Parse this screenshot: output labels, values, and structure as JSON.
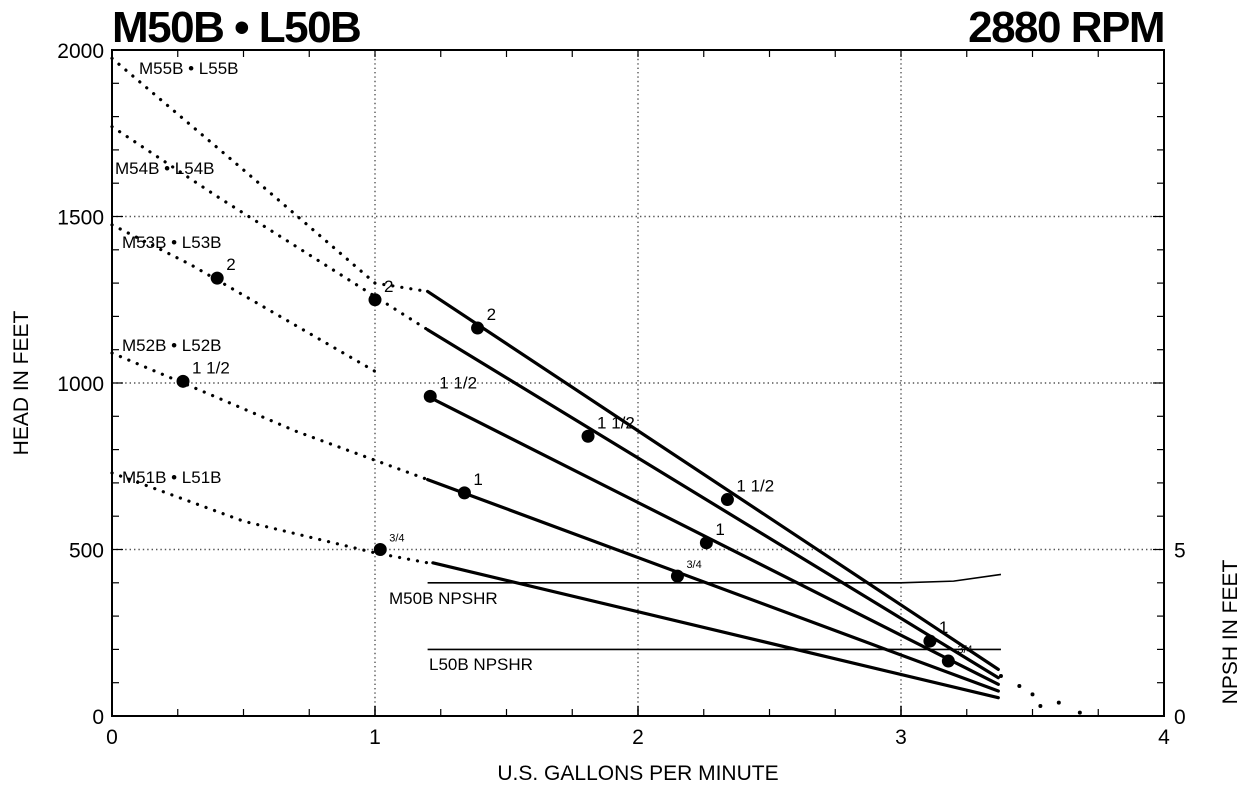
{
  "chart_data": {
    "type": "line",
    "title": "M50B • L50B",
    "title_right": "2880 RPM",
    "xlabel": "U.S. GALLONS PER MINUTE",
    "ylabel": "HEAD IN FEET",
    "y2label": "NPSH IN FEET",
    "xlim": [
      0,
      4
    ],
    "ylim": [
      0,
      2000
    ],
    "y2lim": [
      0,
      20
    ],
    "x_ticks": [
      "0",
      "1",
      "2",
      "3",
      "4"
    ],
    "y_ticks": [
      "0",
      "500",
      "1000",
      "1500",
      "2000"
    ],
    "y2_ticks": [
      "0",
      "5"
    ],
    "grid": "dotted",
    "series": [
      {
        "name": "M55B • L55B",
        "dotted_x": [
          0.0,
          0.5,
          1.0,
          1.2
        ],
        "dotted_y": [
          1975,
          1640,
          1300,
          1275
        ],
        "solid_x": [
          1.2,
          3.37
        ],
        "solid_y": [
          1275,
          140
        ],
        "markers": [
          {
            "x": 1.0,
            "y": 1250,
            "label": "2"
          },
          {
            "x": 1.39,
            "y": 1165,
            "label": "2"
          },
          {
            "x": 2.34,
            "y": 650,
            "label": "1 1/2"
          },
          {
            "x": 3.11,
            "y": 225,
            "label": "1"
          },
          {
            "x": 3.18,
            "y": 165,
            "label": "3/4"
          }
        ]
      },
      {
        "name": "M54B • L54B",
        "dotted_x": [
          0.0,
          0.4,
          0.74,
          1.2
        ],
        "dotted_y": [
          1770,
          1560,
          1390,
          1160
        ],
        "solid_x": [
          1.2,
          3.37
        ],
        "solid_y": [
          1160,
          115
        ],
        "markers": [
          {
            "x": 0.4,
            "y": 1315,
            "label": "2"
          },
          {
            "x": 1.81,
            "y": 840,
            "label": "1 1/2"
          },
          {
            "x": 2.26,
            "y": 520,
            "label": "1"
          }
        ]
      },
      {
        "name": "M53B • L53B",
        "dotted_x": [
          0.0,
          0.3,
          0.65,
          1.0
        ],
        "dotted_y": [
          1475,
          1355,
          1195,
          1035
        ],
        "solid_x": [
          1.2,
          3.37
        ],
        "solid_y": [
          960,
          95
        ],
        "markers": [
          {
            "x": 1.21,
            "y": 960,
            "label": "1 1/2"
          }
        ]
      },
      {
        "name": "M52B • L52B",
        "dotted_x": [
          0.0,
          0.3,
          0.7,
          1.2
        ],
        "dotted_y": [
          1090,
          990,
          855,
          710
        ],
        "solid_x": [
          1.2,
          3.37
        ],
        "solid_y": [
          710,
          75
        ],
        "markers": [
          {
            "x": 0.27,
            "y": 1005,
            "label": "1 1/2"
          },
          {
            "x": 1.34,
            "y": 670,
            "label": "1"
          },
          {
            "x": 2.15,
            "y": 420,
            "label": "3/4"
          }
        ]
      },
      {
        "name": "M51B • L51B",
        "dotted_x": [
          0.0,
          0.5,
          1.0,
          1.2
        ],
        "dotted_y": [
          730,
          585,
          490,
          460
        ],
        "solid_x": [
          1.22,
          3.37
        ],
        "solid_y": [
          460,
          55
        ],
        "markers": [
          {
            "x": 1.02,
            "y": 500,
            "label": "3/4"
          }
        ]
      },
      {
        "name": "M50B NPSHR",
        "x": [
          1.2,
          2.3,
          3.0,
          3.2,
          3.38
        ],
        "y": [
          400,
          400,
          400,
          405,
          425
        ]
      },
      {
        "name": "L50B NPSHR",
        "x": [
          1.2,
          3.38
        ],
        "y": [
          200,
          200
        ]
      }
    ],
    "tail_points": {
      "x": [
        3.38,
        3.45,
        3.5,
        3.53,
        3.6,
        3.68
      ],
      "y": [
        120,
        90,
        65,
        30,
        40,
        10
      ]
    }
  }
}
